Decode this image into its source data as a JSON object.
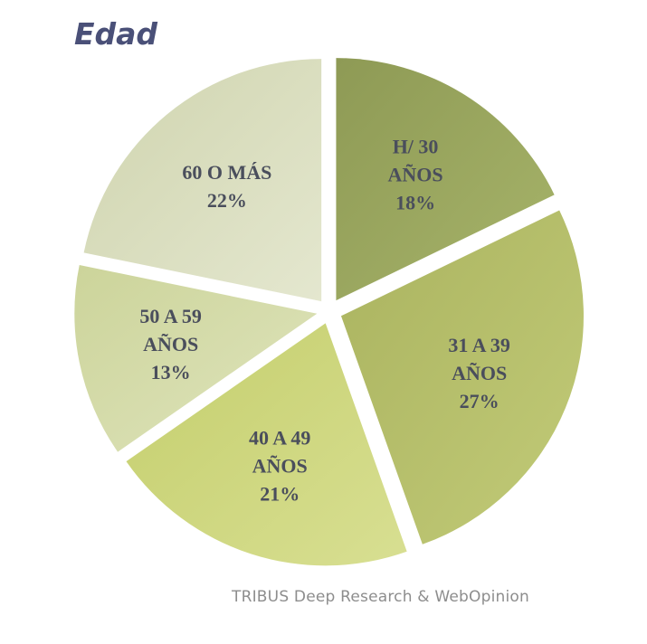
{
  "title": "Edad",
  "source": "TRIBUS Deep Research & WebOpinion",
  "chart_data": {
    "type": "pie",
    "title": "Edad",
    "categories": [
      "H/ 30 AÑOS",
      "31 A 39 AÑOS",
      "40 A 49 AÑOS",
      "50 A 59 AÑOS",
      "60 O MÁS"
    ],
    "values": [
      18,
      27,
      21,
      13,
      22
    ],
    "unit": "%",
    "exploded": true,
    "labels": [
      [
        "H/ 30",
        "AÑOS",
        "18%"
      ],
      [
        "31 A 39",
        "AÑOS",
        "27%"
      ],
      [
        "40 A 49",
        "AÑOS",
        "21%"
      ],
      [
        "50 A 59",
        "AÑOS",
        "13%"
      ],
      [
        "60 O MÁS",
        "22%"
      ]
    ],
    "colors": [
      [
        "#8e9a55",
        "#a7b46a"
      ],
      [
        "#aab35f",
        "#c2cb78"
      ],
      [
        "#c4ce6c",
        "#d8df92"
      ],
      [
        "#ccd49a",
        "#dfe4bd"
      ],
      [
        "#cfd4ae",
        "#e4e7cf"
      ]
    ]
  }
}
